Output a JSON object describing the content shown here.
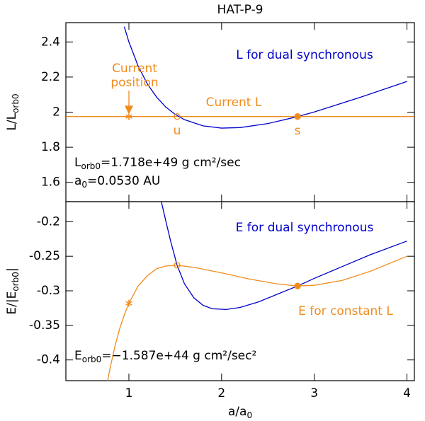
{
  "chart_data": [
    {
      "type": "line",
      "title": "HAT-P-9",
      "ylabel": [
        "L/L",
        "orb0"
      ],
      "xlim": [
        0.32,
        4.08
      ],
      "xticks": [
        1,
        2,
        3,
        4
      ],
      "ylim": [
        1.49,
        2.51
      ],
      "yticks": [
        1.6,
        1.8,
        2,
        2.2,
        2.4
      ],
      "grid": false,
      "series": [
        {
          "color": "#0000cc",
          "x": [
            0.95,
            1.0,
            1.1,
            1.2,
            1.3,
            1.4,
            1.5,
            1.6,
            1.8,
            2.0,
            2.2,
            2.5,
            2.8,
            3.0,
            3.5,
            4.0
          ],
          "values": [
            2.487,
            2.4,
            2.262,
            2.16,
            2.085,
            2.028,
            1.987,
            1.957,
            1.922,
            1.909,
            1.912,
            1.935,
            1.972,
            2.001,
            2.085,
            2.175
          ]
        }
      ],
      "hlines": [
        {
          "value": 1.975,
          "color": "#f08c1e"
        }
      ],
      "markers": [
        {
          "x": 1,
          "y": 1.975,
          "marker": "star",
          "color": "#f08c1e"
        },
        {
          "x": 1.52,
          "y": 1.975,
          "marker": "open-circle",
          "color": "#f08c1e"
        },
        {
          "x": 2.82,
          "y": 1.975,
          "marker": "filled-circle",
          "color": "#f08c1e"
        }
      ],
      "annotations": [
        {
          "text": [
            "L for dual synchronous"
          ],
          "color": "#0000cc"
        },
        {
          "text": [
            "Current"
          ],
          "color": "#f08c1e"
        },
        {
          "text": [
            "position"
          ],
          "color": "#f08c1e"
        },
        {
          "text": [
            "Current L"
          ],
          "color": "#f08c1e"
        },
        {
          "text": [
            "u"
          ],
          "color": "#f08c1e"
        },
        {
          "text": [
            "s"
          ],
          "color": "#f08c1e"
        },
        {
          "text": [
            "L",
            "orb0",
            "=1.718e+49 g cm²/sec"
          ],
          "color": "#000000"
        },
        {
          "text": [
            "a",
            "0",
            "=0.0530 AU"
          ],
          "color": "#000000"
        }
      ]
    },
    {
      "type": "line",
      "ylabel": [
        "E/|E",
        "orb0",
        "|"
      ],
      "xlabel": [
        "a/a",
        "0"
      ],
      "xlim": [
        0.32,
        4.08
      ],
      "xticks": [
        1,
        2,
        3,
        4
      ],
      "ylim": [
        -0.43,
        -0.171
      ],
      "yticks": [
        -0.4,
        -0.35,
        -0.3,
        -0.25,
        -0.2
      ],
      "grid": false,
      "series": [
        {
          "color": "#0000cc",
          "x": [
            1.35,
            1.4,
            1.45,
            1.52,
            1.6,
            1.7,
            1.8,
            1.9,
            2.05,
            2.2,
            2.4,
            2.6,
            2.82,
            3.0,
            3.3,
            3.6,
            4.0
          ],
          "values": [
            -0.171,
            -0.2,
            -0.228,
            -0.263,
            -0.29,
            -0.31,
            -0.321,
            -0.326,
            -0.327,
            -0.324,
            -0.316,
            -0.305,
            -0.293,
            -0.282,
            -0.265,
            -0.248,
            -0.228
          ]
        },
        {
          "color": "#f08c1e",
          "x": [
            0.77,
            0.8,
            0.85,
            0.9,
            0.95,
            1.0,
            1.1,
            1.2,
            1.3,
            1.4,
            1.52,
            1.7,
            2.0,
            2.3,
            2.6,
            2.82,
            3.0,
            3.3,
            3.6,
            4.0
          ],
          "values": [
            -0.43,
            -0.41,
            -0.38,
            -0.355,
            -0.335,
            -0.318,
            -0.293,
            -0.278,
            -0.268,
            -0.264,
            -0.263,
            -0.266,
            -0.274,
            -0.283,
            -0.29,
            -0.293,
            -0.292,
            -0.285,
            -0.272,
            -0.25
          ]
        }
      ],
      "markers": [
        {
          "x": 1,
          "y": -0.318,
          "marker": "star",
          "color": "#f08c1e"
        },
        {
          "x": 1.52,
          "y": -0.263,
          "marker": "open-circle",
          "color": "#f08c1e"
        },
        {
          "x": 2.82,
          "y": -0.293,
          "marker": "filled-circle",
          "color": "#f08c1e"
        }
      ],
      "annotations": [
        {
          "text": [
            "E for dual synchronous"
          ],
          "color": "#0000cc"
        },
        {
          "text": [
            "E for constant L"
          ],
          "color": "#f08c1e"
        },
        {
          "text": [
            "E",
            "orb0",
            "=−1.587e+44 g cm²/sec²"
          ],
          "color": "#000000"
        }
      ]
    }
  ]
}
